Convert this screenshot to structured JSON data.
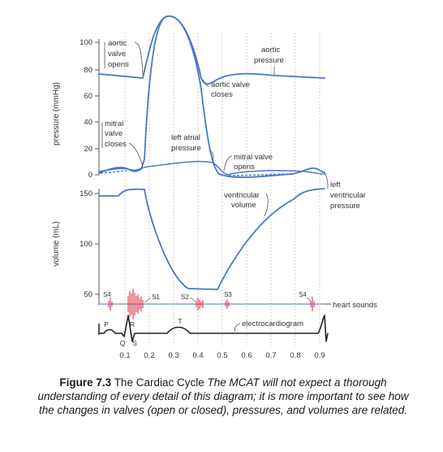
{
  "axes": {
    "pressure_label": "pressure (mmHg)",
    "volume_label": "volume (mL)",
    "pressure_ticks": [
      "100",
      "80",
      "60",
      "40",
      "20",
      "0"
    ],
    "volume_ticks": [
      "150",
      "100",
      "50"
    ],
    "time_ticks": [
      "0.1",
      "0.2",
      "0.3",
      "0.4",
      "0.5",
      "0.6",
      "0.7",
      "0.8",
      "0.9"
    ]
  },
  "annotations": {
    "aortic_valve_opens": [
      "aortic",
      "valve",
      "opens"
    ],
    "mitral_valve_closes": [
      "mitral",
      "valve",
      "closes"
    ],
    "left_atrial_pressure": [
      "left atrial",
      "pressure"
    ],
    "aortic_pressure": [
      "aortic",
      "pressure"
    ],
    "aortic_valve_closes": [
      "aortic valve",
      "closes"
    ],
    "mitral_valve_opens": [
      "mitral valve",
      "opens"
    ],
    "left_ventricular_pressure": [
      "left",
      "ventricular",
      "pressure"
    ],
    "ventricular_volume": [
      "ventricular",
      "volume"
    ],
    "heart_sounds": "heart sounds",
    "electrocardiogram": "electrocardiogram"
  },
  "sounds": {
    "s4_a": "S4",
    "s1": "S1",
    "s2": "S2",
    "s3": "S3",
    "s4_b": "S4"
  },
  "ecg_waves": {
    "p": "P",
    "q": "Q",
    "r": "R",
    "s": "S",
    "t": "T"
  },
  "caption": {
    "label": "Figure 7.3",
    "title": "The Cardiac Cycle",
    "note": "The MCAT will not expect a thorough understanding of every detail of this diagram; it is more important to see how the changes in valves (open or closed), pressures, and volumes are related."
  },
  "colors": {
    "curve": "#4a77c4",
    "heart_sounds": "#e0273a",
    "axis": "#555555",
    "grid": "#c8c8c8"
  }
}
